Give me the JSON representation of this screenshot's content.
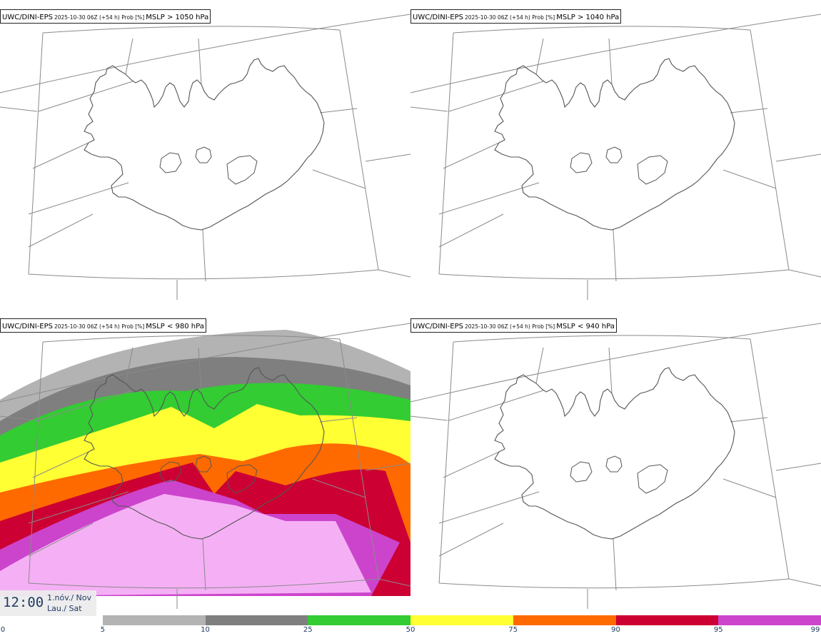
{
  "panels": [
    {
      "model": "UWC/DINI-EPS",
      "meta": "2025-10-30 06Z (+54 h) Prob [%]",
      "param": "MSLP > 1050 hPa"
    },
    {
      "model": "UWC/DINI-EPS",
      "meta": "2025-10-30 06Z (+54 h) Prob [%]",
      "param": "MSLP > 1040 hPa"
    },
    {
      "model": "UWC/DINI-EPS",
      "meta": "2025-10-30 06Z (+54 h) Prob [%]",
      "param": "MSLP < 980 hPa"
    },
    {
      "model": "UWC/DINI-EPS",
      "meta": "2025-10-30 06Z (+54 h) Prob [%]",
      "param": "MSLP < 940 hPa"
    }
  ],
  "time": {
    "clock": "12:00",
    "date_line1": "1.nóv./ Nov",
    "date_line2": "Lau./ Sat"
  },
  "legend": {
    "labels": [
      "0",
      "5",
      "10",
      "25",
      "50",
      "75",
      "90",
      "95",
      "99"
    ],
    "colors": [
      "#ffffff",
      "#b3b3b3",
      "#7f7f7f",
      "#33cc33",
      "#ffff33",
      "#ff6a00",
      "#cc0033",
      "#cc44cc",
      "#f5b0f5"
    ]
  },
  "map": {
    "coastline_color": "#555555",
    "grid_color": "#8a8a8a"
  }
}
